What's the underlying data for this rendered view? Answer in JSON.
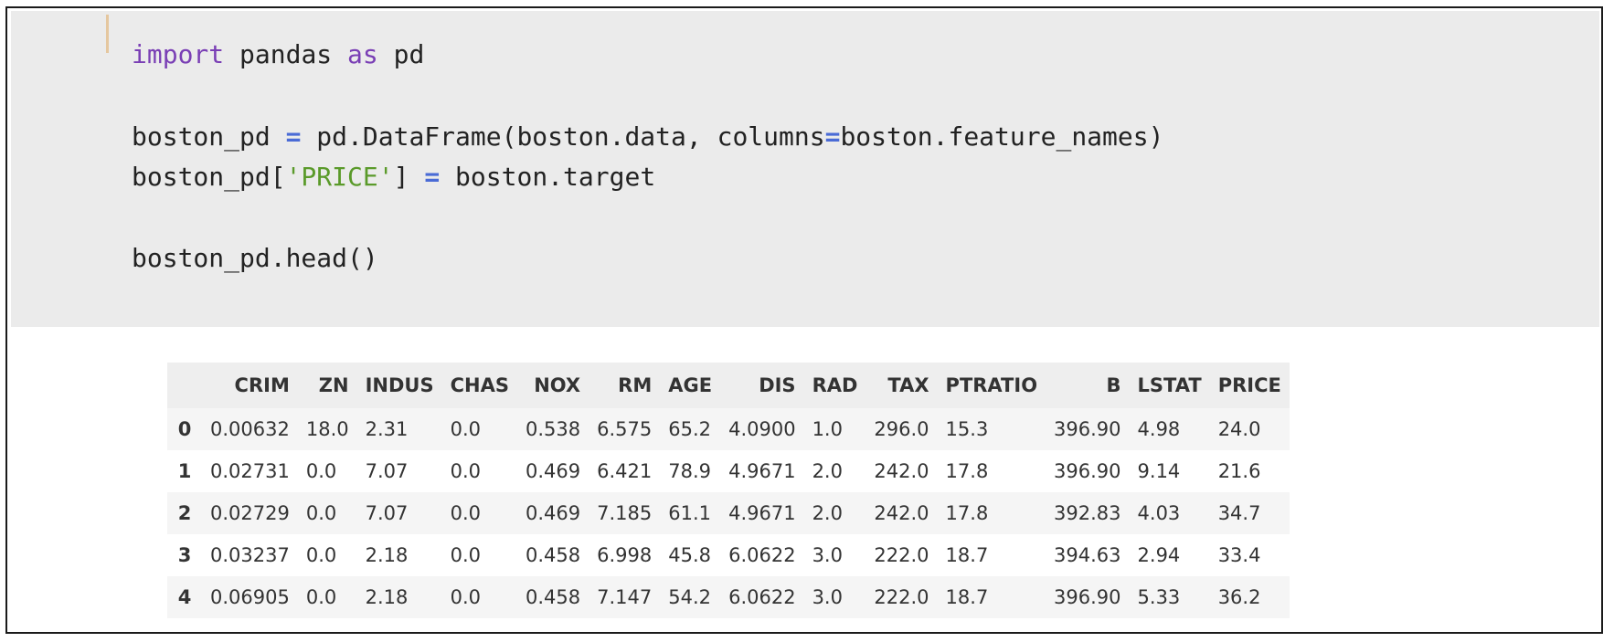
{
  "code": {
    "lines": [
      {
        "parts": [
          {
            "t": "import",
            "c": "kw"
          },
          {
            "t": " pandas ",
            "c": ""
          },
          {
            "t": "as",
            "c": "kw"
          },
          {
            "t": " pd",
            "c": ""
          }
        ]
      },
      {
        "parts": [
          {
            "t": "boston_pd ",
            "c": ""
          },
          {
            "t": "=",
            "c": "op"
          },
          {
            "t": " pd.DataFrame(boston.data, columns",
            "c": ""
          },
          {
            "t": "=",
            "c": "op"
          },
          {
            "t": "boston.feature_names)",
            "c": ""
          }
        ]
      },
      {
        "parts": [
          {
            "t": "boston_pd[",
            "c": ""
          },
          {
            "t": "'PRICE'",
            "c": "str"
          },
          {
            "t": "] ",
            "c": ""
          },
          {
            "t": "=",
            "c": "op"
          },
          {
            "t": " boston.target",
            "c": ""
          }
        ]
      },
      {
        "parts": [
          {
            "t": "boston_pd.head()",
            "c": ""
          }
        ]
      }
    ]
  },
  "table": {
    "columns": [
      "CRIM",
      "ZN",
      "INDUS",
      "CHAS",
      "NOX",
      "RM",
      "AGE",
      "DIS",
      "RAD",
      "TAX",
      "PTRATIO",
      "B",
      "LSTAT",
      "PRICE"
    ],
    "header_align": [
      "right",
      "right",
      "right",
      "right",
      "right",
      "right",
      "right",
      "right",
      "right",
      "right",
      "right",
      "right",
      "right",
      "right"
    ],
    "rows": [
      {
        "index": "0",
        "cells": [
          "0.00632",
          "18.0",
          "2.31",
          "0.0",
          "0.538",
          "6.575",
          "65.2",
          "4.0900",
          "1.0",
          "296.0",
          "15.3",
          "396.90",
          "4.98",
          "24.0"
        ]
      },
      {
        "index": "1",
        "cells": [
          "0.02731",
          "0.0",
          "7.07",
          "0.0",
          "0.469",
          "6.421",
          "78.9",
          "4.9671",
          "2.0",
          "242.0",
          "17.8",
          "396.90",
          "9.14",
          "21.6"
        ]
      },
      {
        "index": "2",
        "cells": [
          "0.02729",
          "0.0",
          "7.07",
          "0.0",
          "0.469",
          "7.185",
          "61.1",
          "4.9671",
          "2.0",
          "242.0",
          "17.8",
          "392.83",
          "4.03",
          "34.7"
        ]
      },
      {
        "index": "3",
        "cells": [
          "0.03237",
          "0.0",
          "2.18",
          "0.0",
          "0.458",
          "6.998",
          "45.8",
          "6.0622",
          "3.0",
          "222.0",
          "18.7",
          "394.63",
          "2.94",
          "33.4"
        ]
      },
      {
        "index": "4",
        "cells": [
          "0.06905",
          "0.0",
          "2.18",
          "0.0",
          "0.458",
          "7.147",
          "54.2",
          "6.0622",
          "3.0",
          "222.0",
          "18.7",
          "396.90",
          "5.33",
          "36.2"
        ]
      }
    ]
  },
  "colors": {
    "code_background": "#ebebeb",
    "keyword": "#7a3fb5",
    "operator": "#4a6bd6",
    "string": "#5a9a2a",
    "cursor": "#e5c79f"
  }
}
